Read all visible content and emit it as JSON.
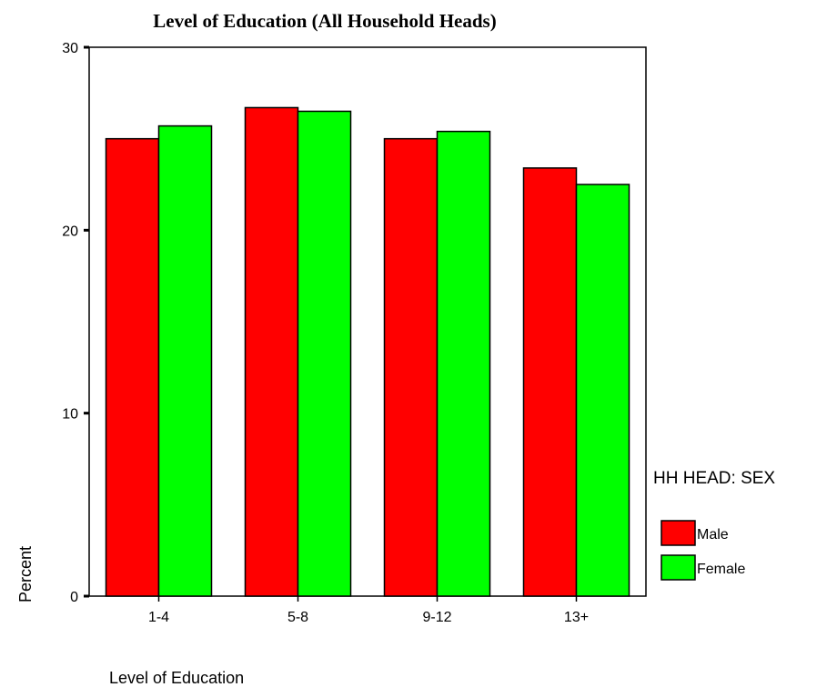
{
  "chart_data": {
    "type": "bar",
    "title": "Level of Education (All Household Heads)",
    "xlabel": "Level of Education",
    "ylabel": "Percent",
    "categories": [
      "1-4",
      "5-8",
      "9-12",
      "13+"
    ],
    "series": [
      {
        "name": "Male",
        "color": "#ff0000",
        "values": [
          25.0,
          26.7,
          25.0,
          23.4
        ]
      },
      {
        "name": "Female",
        "color": "#00ff00",
        "values": [
          25.7,
          26.5,
          25.4,
          22.5
        ]
      }
    ],
    "ylim": [
      0,
      30
    ],
    "yticks": [
      0,
      10,
      20,
      30
    ],
    "ytick_labels": [
      "0",
      "10",
      "20",
      "30"
    ],
    "legend_title": "HH HEAD: SEX",
    "legend_position": "right",
    "grid": false
  }
}
